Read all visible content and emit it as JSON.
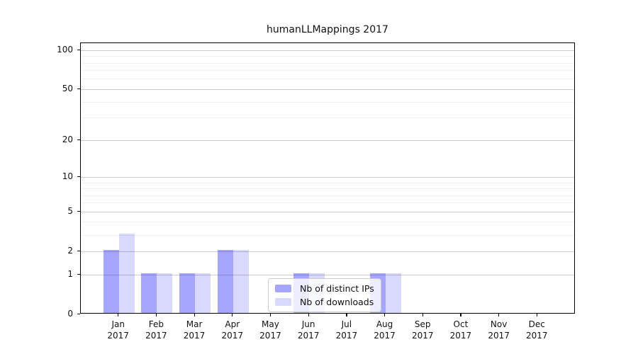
{
  "chart_data": {
    "type": "bar",
    "title": "humanLLMappings 2017",
    "year": "2017",
    "categories": [
      "Jan",
      "Feb",
      "Mar",
      "Apr",
      "May",
      "Jun",
      "Jul",
      "Aug",
      "Sep",
      "Oct",
      "Nov",
      "Dec"
    ],
    "series": [
      {
        "name": "Nb of distinct IPs",
        "color": "#0000ff",
        "alpha": 0.35,
        "values": [
          2,
          1,
          1,
          2,
          0,
          1,
          0,
          1,
          0,
          0,
          0,
          0
        ]
      },
      {
        "name": "Nb of downloads",
        "color": "#0000ff",
        "alpha": 0.15,
        "values": [
          3,
          1,
          1,
          2,
          0,
          1,
          0,
          1,
          0,
          0,
          0,
          0
        ]
      }
    ],
    "yscale": "log10(1+x)",
    "ylim": [
      0,
      113.6
    ],
    "ytick_values": [
      100,
      50,
      20,
      10,
      5,
      2,
      1,
      0
    ],
    "minor_grid_values": [
      3,
      4,
      6,
      7,
      8,
      9,
      30,
      40,
      60,
      70,
      80,
      90
    ],
    "grid": true,
    "legend_position": "lower center-right",
    "colors": {
      "major_grid": "#cccccc",
      "minor_grid": "#f0f0f0",
      "spine": "#000000",
      "text": "#111111",
      "background": "#ffffff"
    }
  }
}
